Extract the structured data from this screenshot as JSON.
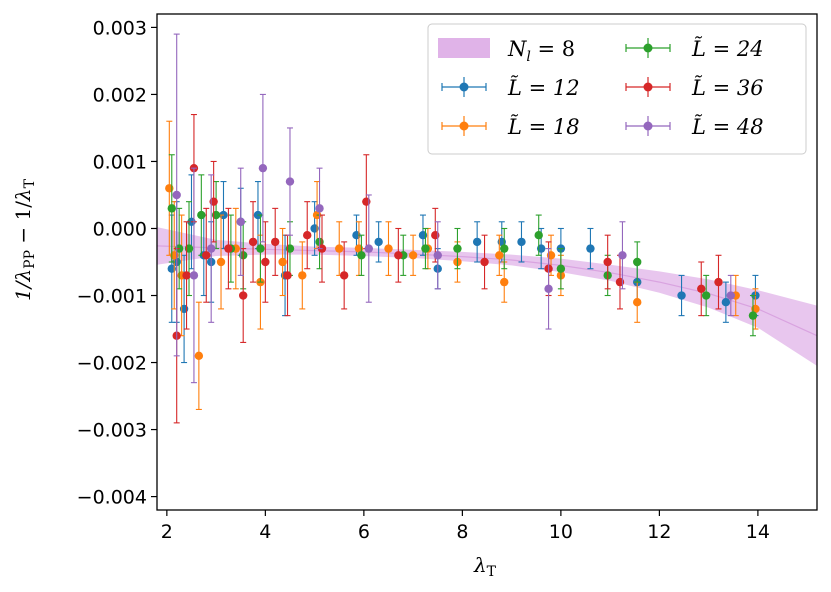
{
  "chart_data": {
    "type": "scatter",
    "xlabel": "λ_T",
    "ylabel": "1/λ_PP − 1/λ_T",
    "xlim": [
      1.8,
      15.2
    ],
    "ylim": [
      -0.0042,
      0.0032
    ],
    "xticks": [
      2,
      4,
      6,
      8,
      10,
      12,
      14
    ],
    "xtick_labels": [
      "2",
      "4",
      "6",
      "8",
      "10",
      "12",
      "14"
    ],
    "yticks": [
      0.003,
      0.002,
      0.001,
      0.0,
      -0.001,
      -0.002,
      -0.003,
      -0.004
    ],
    "ytick_labels": [
      "0.003",
      "0.002",
      "0.001",
      "0.000",
      "−0.001",
      "−0.002",
      "−0.003",
      "−0.004"
    ],
    "legend_position": "top-right",
    "band": {
      "label": "N_l = 8",
      "color": "#e0b3e8",
      "center": [
        [
          1.8,
          -0.00026
        ],
        [
          3,
          -0.00029
        ],
        [
          4,
          -0.00031
        ],
        [
          5,
          -0.00033
        ],
        [
          6,
          -0.00035
        ],
        [
          7,
          -0.00038
        ],
        [
          8,
          -0.00042
        ],
        [
          9,
          -0.00047
        ],
        [
          10,
          -0.00055
        ],
        [
          11,
          -0.00066
        ],
        [
          12,
          -0.0008
        ],
        [
          13,
          -0.00097
        ],
        [
          14,
          -0.0012
        ],
        [
          15.2,
          -0.0016
        ]
      ],
      "half_width": [
        [
          1.8,
          0.00028
        ],
        [
          3,
          0.00012
        ],
        [
          4,
          8e-05
        ],
        [
          5,
          6e-05
        ],
        [
          6,
          6e-05
        ],
        [
          7,
          6e-05
        ],
        [
          8,
          7e-05
        ],
        [
          9,
          8e-05
        ],
        [
          10,
          0.0001
        ],
        [
          11,
          0.00012
        ],
        [
          12,
          0.00016
        ],
        [
          13,
          0.00021
        ],
        [
          14,
          0.00028
        ],
        [
          15.2,
          0.00045
        ]
      ]
    },
    "series": [
      {
        "name": "L̃ = 12",
        "color": "#1f77b4",
        "points": [
          [
            2.1,
            -0.0006,
            0.0008
          ],
          [
            2.2,
            -0.0005,
            0.0009
          ],
          [
            2.35,
            -0.0012,
            0.0008
          ],
          [
            2.5,
            0.0001,
            0.0007
          ],
          [
            2.75,
            -0.0004,
            0.0006
          ],
          [
            2.9,
            -0.0005,
            0.0006
          ],
          [
            3.15,
            0.0002,
            0.0005
          ],
          [
            3.5,
            0.0001,
            0.0005
          ],
          [
            3.85,
            0.0002,
            0.0005
          ],
          [
            4.4,
            -0.0007,
            0.0006
          ],
          [
            5.0,
            0.0,
            0.0004
          ],
          [
            5.85,
            -0.0001,
            0.0003
          ],
          [
            6.3,
            -0.0002,
            0.0003
          ],
          [
            7.2,
            -0.0001,
            0.0003
          ],
          [
            7.5,
            -0.0006,
            0.0003
          ],
          [
            8.3,
            -0.0002,
            0.0003
          ],
          [
            8.8,
            -0.0002,
            0.0003
          ],
          [
            9.2,
            -0.0002,
            0.0003
          ],
          [
            9.6,
            -0.0003,
            0.0003
          ],
          [
            10.0,
            -0.0003,
            0.0003
          ],
          [
            10.6,
            -0.0003,
            0.0003
          ],
          [
            11.55,
            -0.0008,
            0.0003
          ],
          [
            12.45,
            -0.001,
            0.0003
          ],
          [
            13.35,
            -0.0011,
            0.0003
          ],
          [
            13.95,
            -0.001,
            0.0003
          ]
        ]
      },
      {
        "name": "L̃ = 18",
        "color": "#ff7f0e",
        "points": [
          [
            2.05,
            0.0006,
            0.001
          ],
          [
            2.15,
            -0.0004,
            0.0008
          ],
          [
            2.3,
            -0.0007,
            0.0009
          ],
          [
            2.65,
            -0.0019,
            0.0008
          ],
          [
            3.1,
            -0.0005,
            0.0007
          ],
          [
            3.4,
            -0.0003,
            0.0006
          ],
          [
            3.9,
            -0.0008,
            0.0007
          ],
          [
            4.35,
            -0.0005,
            0.0005
          ],
          [
            4.75,
            -0.0007,
            0.0005
          ],
          [
            5.05,
            0.0002,
            0.0005
          ],
          [
            5.5,
            -0.0003,
            0.0004
          ],
          [
            5.9,
            -0.0003,
            0.0004
          ],
          [
            6.5,
            -0.0003,
            0.0004
          ],
          [
            7.0,
            -0.0004,
            0.0003
          ],
          [
            7.3,
            -0.0003,
            0.0003
          ],
          [
            7.9,
            -0.0005,
            0.0003
          ],
          [
            8.75,
            -0.0004,
            0.0003
          ],
          [
            8.85,
            -0.0008,
            0.0003
          ],
          [
            9.8,
            -0.0004,
            0.0003
          ],
          [
            10.0,
            -0.0007,
            0.0003
          ],
          [
            11.55,
            -0.0011,
            0.0003
          ],
          [
            13.55,
            -0.001,
            0.0003
          ],
          [
            13.95,
            -0.0012,
            0.0003
          ]
        ]
      },
      {
        "name": "L̃ = 24",
        "color": "#2ca02c",
        "points": [
          [
            2.1,
            0.0003,
            0.0008
          ],
          [
            2.25,
            -0.0003,
            0.0006
          ],
          [
            2.45,
            -0.0003,
            0.0007
          ],
          [
            2.7,
            0.0002,
            0.0006
          ],
          [
            3.0,
            0.0002,
            0.0005
          ],
          [
            3.3,
            -0.0003,
            0.0005
          ],
          [
            3.55,
            -0.0004,
            0.0005
          ],
          [
            3.9,
            -0.0003,
            0.0005
          ],
          [
            4.5,
            -0.0003,
            0.0004
          ],
          [
            5.1,
            -0.0002,
            0.0004
          ],
          [
            5.95,
            -0.0004,
            0.0003
          ],
          [
            6.8,
            -0.0004,
            0.0003
          ],
          [
            7.25,
            -0.0003,
            0.0003
          ],
          [
            7.9,
            -0.0003,
            0.0003
          ],
          [
            8.85,
            -0.0003,
            0.0003
          ],
          [
            9.55,
            -0.0001,
            0.0003
          ],
          [
            10.0,
            -0.0006,
            0.0003
          ],
          [
            10.95,
            -0.0007,
            0.0003
          ],
          [
            11.55,
            -0.0005,
            0.0003
          ],
          [
            12.95,
            -0.001,
            0.0003
          ],
          [
            13.9,
            -0.0013,
            0.0003
          ]
        ]
      },
      {
        "name": "L̃ = 36",
        "color": "#d62728",
        "points": [
          [
            2.2,
            -0.0016,
            0.0013
          ],
          [
            2.4,
            -0.0007,
            0.0008
          ],
          [
            2.55,
            0.0009,
            0.0008
          ],
          [
            2.8,
            -0.0004,
            0.0007
          ],
          [
            2.95,
            0.0004,
            0.0006
          ],
          [
            3.25,
            -0.0003,
            0.0006
          ],
          [
            3.55,
            -0.001,
            0.0007
          ],
          [
            3.75,
            -0.0002,
            0.0006
          ],
          [
            4.0,
            -0.0005,
            0.0006
          ],
          [
            4.2,
            -0.0002,
            0.0005
          ],
          [
            4.45,
            -0.0007,
            0.0006
          ],
          [
            4.85,
            -0.0001,
            0.0005
          ],
          [
            5.15,
            -0.0003,
            0.0005
          ],
          [
            5.6,
            -0.0007,
            0.0005
          ],
          [
            6.05,
            0.0004,
            0.0007
          ],
          [
            6.7,
            -0.0004,
            0.0004
          ],
          [
            7.45,
            -0.0001,
            0.0004
          ],
          [
            8.45,
            -0.0005,
            0.0004
          ],
          [
            9.75,
            -0.0006,
            0.0004
          ],
          [
            10.95,
            -0.0005,
            0.0004
          ],
          [
            11.2,
            -0.0008,
            0.0004
          ],
          [
            12.85,
            -0.0009,
            0.0004
          ],
          [
            13.2,
            -0.0008,
            0.0004
          ]
        ]
      },
      {
        "name": "L̃ = 48",
        "color": "#9467bd",
        "points": [
          [
            2.2,
            0.0005,
            0.0024
          ],
          [
            2.55,
            -0.0007,
            0.0016
          ],
          [
            2.9,
            -0.0003,
            0.0011
          ],
          [
            3.5,
            0.0001,
            0.0008
          ],
          [
            3.95,
            0.0009,
            0.0011
          ],
          [
            4.5,
            0.0007,
            0.0008
          ],
          [
            5.1,
            0.0003,
            0.0006
          ],
          [
            6.1,
            -0.0003,
            0.0008
          ],
          [
            7.5,
            -0.0004,
            0.0005
          ],
          [
            9.75,
            -0.0009,
            0.0006
          ],
          [
            11.25,
            -0.0004,
            0.0005
          ],
          [
            13.45,
            -0.001,
            0.0003
          ]
        ]
      }
    ]
  }
}
